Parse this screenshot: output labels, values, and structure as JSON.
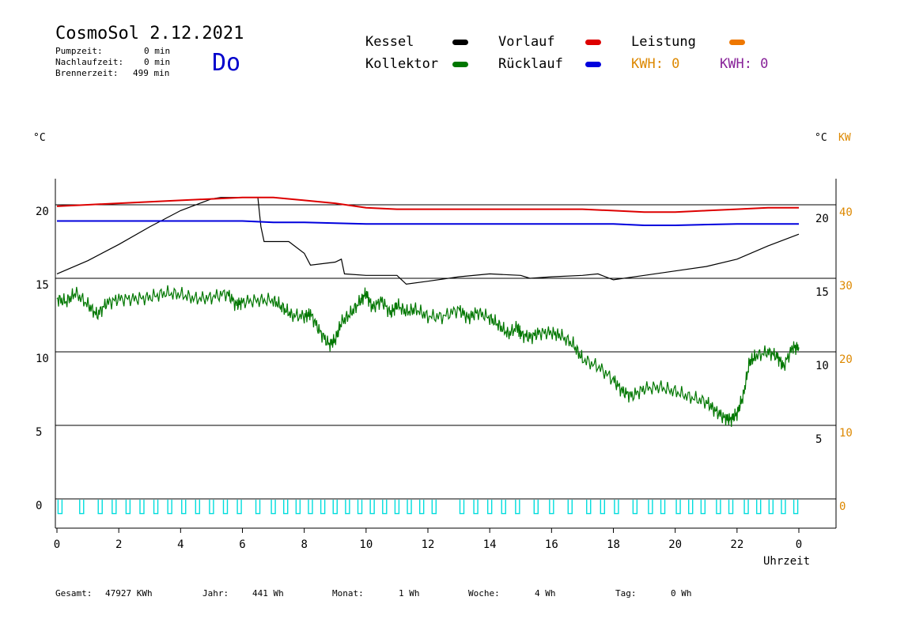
{
  "header": {
    "title": "CosmoSol 2.12.2021",
    "weekday": "Do",
    "pumpzeit_label": "Pumpzeit:",
    "pumpzeit_value": "0 min",
    "nachlaufzeit_label": "Nachlaufzeit:",
    "nachlaufzeit_value": "0 min",
    "brennerzeit_label": "Brennerzeit:",
    "brennerzeit_value": "499 min"
  },
  "legend": {
    "kessel": "Kessel",
    "kollektor": "Kollektor",
    "vorlauf": "Vorlauf",
    "ruecklauf": "Rücklauf",
    "leistung": "Leistung",
    "kwh1": "KWH: 0",
    "kwh2": "KWH: 0"
  },
  "colors": {
    "kessel": "#000000",
    "kollektor": "#007700",
    "vorlauf": "#dd0000",
    "ruecklauf": "#0000dd",
    "leistung": "#ee7700",
    "kwh2": "#882299",
    "pump": "#00dddd",
    "axis_kw": "#dd8800"
  },
  "axes": {
    "left_unit": "°C",
    "right_unit": "°C",
    "kw_unit": "KW",
    "xlabel": "Uhrzeit"
  },
  "footer": {
    "gesamt_label": "Gesamt:",
    "gesamt_value": "47927 KWh",
    "jahr_label": "Jahr:",
    "jahr_value": "441 Wh",
    "monat_label": "Monat:",
    "monat_value": "1 Wh",
    "woche_label": "Woche:",
    "woche_value": "4 Wh",
    "tag_label": "Tag:",
    "tag_value": "0 Wh"
  },
  "chart_data": {
    "type": "line",
    "xlim": [
      0,
      24
    ],
    "x_ticks": [
      "0",
      "2",
      "4",
      "6",
      "8",
      "10",
      "12",
      "14",
      "16",
      "18",
      "20",
      "22",
      "0"
    ],
    "left_ylim": [
      -1.5,
      22.3
    ],
    "left_ticks": [
      0,
      5,
      10,
      15,
      20
    ],
    "right_ticks": [
      5,
      10,
      15,
      20
    ],
    "kw_ticks": [
      0,
      10,
      20,
      30,
      40
    ],
    "grid_y": [
      0,
      5,
      10,
      15,
      20
    ],
    "series": [
      {
        "name": "Kessel",
        "points": [
          [
            0,
            15.3
          ],
          [
            1,
            16.2
          ],
          [
            2,
            17.3
          ],
          [
            3,
            18.5
          ],
          [
            4,
            19.6
          ],
          [
            5,
            20.4
          ],
          [
            5.3,
            20.5
          ],
          [
            6.5,
            20.5
          ],
          [
            6.6,
            18.5
          ],
          [
            6.7,
            17.5
          ],
          [
            7.5,
            17.5
          ],
          [
            8,
            16.7
          ],
          [
            8.2,
            15.9
          ],
          [
            9,
            16.1
          ],
          [
            9.2,
            16.3
          ],
          [
            9.3,
            15.3
          ],
          [
            10,
            15.2
          ],
          [
            11,
            15.2
          ],
          [
            11.3,
            14.6
          ],
          [
            12,
            14.8
          ],
          [
            13,
            15.1
          ],
          [
            14,
            15.3
          ],
          [
            15,
            15.2
          ],
          [
            15.3,
            15.0
          ],
          [
            16,
            15.1
          ],
          [
            17,
            15.2
          ],
          [
            17.5,
            15.3
          ],
          [
            18,
            14.9
          ],
          [
            19,
            15.2
          ],
          [
            20,
            15.5
          ],
          [
            21,
            15.8
          ],
          [
            22,
            16.3
          ],
          [
            23,
            17.2
          ],
          [
            24,
            18.0
          ]
        ]
      },
      {
        "name": "Kollektor",
        "points": [
          [
            0,
            13.6
          ],
          [
            0.3,
            13.4
          ],
          [
            0.6,
            14.0
          ],
          [
            1,
            13.2
          ],
          [
            1.3,
            12.5
          ],
          [
            1.6,
            13.3
          ],
          [
            2,
            13.6
          ],
          [
            2.5,
            13.6
          ],
          [
            3,
            13.7
          ],
          [
            3.5,
            14.0
          ],
          [
            4,
            13.9
          ],
          [
            4.5,
            13.6
          ],
          [
            5,
            13.7
          ],
          [
            5.5,
            14.0
          ],
          [
            5.8,
            13.2
          ],
          [
            6,
            13.4
          ],
          [
            6.5,
            13.5
          ],
          [
            7,
            13.5
          ],
          [
            7.3,
            13.0
          ],
          [
            7.6,
            12.5
          ],
          [
            8,
            12.4
          ],
          [
            8.2,
            12.6
          ],
          [
            8.5,
            11.4
          ],
          [
            8.8,
            10.5
          ],
          [
            9,
            10.8
          ],
          [
            9.2,
            12.0
          ],
          [
            9.5,
            12.6
          ],
          [
            9.8,
            13.4
          ],
          [
            10,
            14.0
          ],
          [
            10.2,
            13.0
          ],
          [
            10.5,
            13.5
          ],
          [
            10.8,
            12.6
          ],
          [
            11,
            13.2
          ],
          [
            11.3,
            12.7
          ],
          [
            11.6,
            12.9
          ],
          [
            12,
            12.4
          ],
          [
            12.5,
            12.4
          ],
          [
            13,
            12.9
          ],
          [
            13.3,
            12.3
          ],
          [
            13.6,
            12.7
          ],
          [
            14,
            12.3
          ],
          [
            14.3,
            11.8
          ],
          [
            14.6,
            11.2
          ],
          [
            14.9,
            11.7
          ],
          [
            15,
            11.2
          ],
          [
            15.3,
            11.0
          ],
          [
            15.6,
            11.3
          ],
          [
            16,
            11.3
          ],
          [
            16.3,
            11.1
          ],
          [
            16.7,
            10.5
          ],
          [
            17,
            9.5
          ],
          [
            17.5,
            9.0
          ],
          [
            18,
            8.1
          ],
          [
            18.3,
            7.3
          ],
          [
            18.6,
            7.0
          ],
          [
            19,
            7.5
          ],
          [
            19.5,
            7.6
          ],
          [
            20,
            7.3
          ],
          [
            20.5,
            6.9
          ],
          [
            21,
            6.6
          ],
          [
            21.3,
            6.0
          ],
          [
            21.6,
            5.5
          ],
          [
            21.8,
            5.4
          ],
          [
            22,
            5.8
          ],
          [
            22.2,
            7.0
          ],
          [
            22.4,
            9.3
          ],
          [
            22.6,
            9.7
          ],
          [
            23,
            10.0
          ],
          [
            23.3,
            9.7
          ],
          [
            23.5,
            9.0
          ],
          [
            23.8,
            10.3
          ],
          [
            24,
            10.3
          ]
        ]
      },
      {
        "name": "Vorlauf",
        "points": [
          [
            0,
            19.9
          ],
          [
            1,
            20.0
          ],
          [
            2,
            20.1
          ],
          [
            3,
            20.2
          ],
          [
            4,
            20.3
          ],
          [
            5,
            20.4
          ],
          [
            6,
            20.5
          ],
          [
            7,
            20.5
          ],
          [
            8,
            20.3
          ],
          [
            9,
            20.1
          ],
          [
            10,
            19.8
          ],
          [
            11,
            19.7
          ],
          [
            12,
            19.7
          ],
          [
            13,
            19.7
          ],
          [
            14,
            19.7
          ],
          [
            15,
            19.7
          ],
          [
            16,
            19.7
          ],
          [
            17,
            19.7
          ],
          [
            18,
            19.6
          ],
          [
            19,
            19.5
          ],
          [
            20,
            19.5
          ],
          [
            21,
            19.6
          ],
          [
            22,
            19.7
          ],
          [
            23,
            19.8
          ],
          [
            24,
            19.8
          ]
        ]
      },
      {
        "name": "Rücklauf",
        "points": [
          [
            0,
            18.9
          ],
          [
            2,
            18.9
          ],
          [
            4,
            18.9
          ],
          [
            6,
            18.9
          ],
          [
            7,
            18.8
          ],
          [
            8,
            18.8
          ],
          [
            10,
            18.7
          ],
          [
            12,
            18.7
          ],
          [
            14,
            18.7
          ],
          [
            16,
            18.7
          ],
          [
            18,
            18.7
          ],
          [
            19,
            18.6
          ],
          [
            20,
            18.6
          ],
          [
            22,
            18.7
          ],
          [
            24,
            18.7
          ]
        ]
      }
    ],
    "pump_pulse_hours": [
      0.1,
      0.8,
      1.4,
      1.85,
      2.3,
      2.75,
      3.2,
      3.65,
      4.1,
      4.55,
      5.0,
      5.45,
      5.9,
      6.5,
      7.0,
      7.4,
      7.8,
      8.2,
      8.6,
      9.0,
      9.4,
      9.8,
      10.2,
      10.6,
      11.0,
      11.4,
      11.8,
      12.2,
      13.1,
      13.55,
      14.0,
      14.45,
      14.9,
      15.5,
      16.0,
      16.6,
      17.2,
      17.65,
      18.1,
      18.7,
      19.2,
      19.6,
      20.1,
      20.5,
      20.9,
      21.4,
      21.8,
      22.3,
      22.7,
      23.1,
      23.5,
      23.9
    ]
  }
}
